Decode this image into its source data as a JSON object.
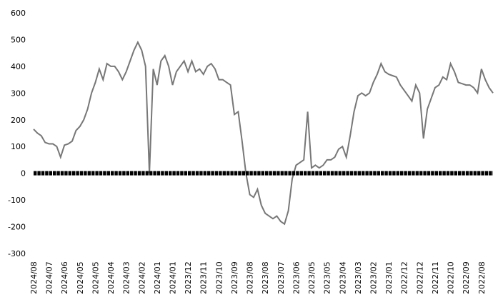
{
  "chart_data": {
    "type": "line",
    "categories": [
      "2024/08",
      null,
      null,
      null,
      "2024/07",
      null,
      null,
      null,
      "2024/06",
      null,
      null,
      null,
      "2024/05",
      null,
      null,
      null,
      "2024/05",
      null,
      null,
      null,
      "2024/04",
      null,
      null,
      null,
      "2024/03",
      null,
      null,
      null,
      "2024/02",
      null,
      null,
      null,
      "2024/01",
      null,
      null,
      null,
      "2024/01",
      null,
      null,
      null,
      "2023/12",
      null,
      null,
      null,
      "2023/11",
      null,
      null,
      null,
      "2023/10",
      null,
      null,
      null,
      "2023/09",
      null,
      null,
      null,
      "2023/08",
      null,
      null,
      null,
      "2023/08",
      null,
      null,
      null,
      "2023/07",
      null,
      null,
      null,
      "2023/06",
      null,
      null,
      null,
      "2023/05",
      null,
      null,
      null,
      "2023/05",
      null,
      null,
      null,
      "2023/04",
      null,
      null,
      null,
      "2023/03",
      null,
      null,
      null,
      "2023/02",
      null,
      null,
      null,
      "2023/01",
      null,
      null,
      null,
      "2022/12",
      null,
      null,
      null,
      "2022/12",
      null,
      null,
      null,
      "2022/11",
      null,
      null,
      null,
      "2022/10",
      null,
      null,
      null,
      "2022/09",
      null,
      null,
      null,
      "2022/08",
      null,
      null,
      null
    ],
    "series": [
      {
        "color": "#777777",
        "values": [
          165,
          150,
          140,
          115,
          110,
          110,
          100,
          60,
          105,
          110,
          120,
          160,
          175,
          200,
          240,
          300,
          340,
          390,
          350,
          410,
          400,
          400,
          380,
          350,
          380,
          420,
          460,
          490,
          460,
          400,
          0,
          390,
          330,
          420,
          440,
          400,
          330,
          380,
          400,
          420,
          380,
          420,
          380,
          390,
          370,
          400,
          410,
          390,
          350,
          350,
          340,
          330,
          220,
          230,
          120,
          0,
          -80,
          -90,
          -60,
          -120,
          -150,
          -160,
          -170,
          -160,
          -180,
          -190,
          -140,
          -20,
          30,
          40,
          50,
          230,
          20,
          30,
          20,
          30,
          50,
          50,
          60,
          90,
          100,
          60,
          140,
          230,
          290,
          300,
          290,
          300,
          340,
          370,
          410,
          380,
          370,
          365,
          360,
          330,
          310,
          290,
          270,
          330,
          300,
          130,
          240,
          280,
          320,
          330,
          360,
          350,
          410,
          380,
          340,
          335,
          330,
          330,
          320,
          300,
          390,
          350,
          320,
          300
        ]
      }
    ],
    "ylim": [
      -300,
      600
    ],
    "yticks": [
      -300,
      -200,
      -100,
      0,
      100,
      200,
      300,
      400,
      500,
      600
    ]
  }
}
